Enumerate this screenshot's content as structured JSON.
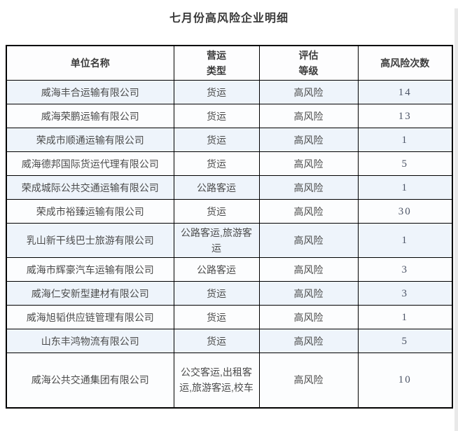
{
  "page": {
    "title": "七月份高风险企业明细"
  },
  "table": {
    "columns": [
      {
        "label": "单位名称"
      },
      {
        "label": "营运\n类型"
      },
      {
        "label": "评估\n等级"
      },
      {
        "label": "高风险次数"
      }
    ],
    "rows": [
      {
        "name": "威海丰合运输有限公司",
        "type": "货运",
        "level": "高风险",
        "count": "14"
      },
      {
        "name": "威海荣鹏运输有限公司",
        "type": "货运",
        "level": "高风险",
        "count": "13"
      },
      {
        "name": "荣成市顺通运输有限公司",
        "type": "货运",
        "level": "高风险",
        "count": "1"
      },
      {
        "name": "威海德邦国际货运代理有限公司",
        "type": "货运",
        "level": "高风险",
        "count": "5"
      },
      {
        "name": "荣成城际公共交通运输有限公司",
        "type": "公路客运",
        "level": "高风险",
        "count": "1"
      },
      {
        "name": "荣成市裕臻运输有限公司",
        "type": "货运",
        "level": "高风险",
        "count": "30"
      },
      {
        "name": "乳山新干线巴士旅游有限公司",
        "type": "公路客运,旅游客运",
        "level": "高风险",
        "count": "1"
      },
      {
        "name": "威海市辉豪汽车运输有限公司",
        "type": "公路客运",
        "level": "高风险",
        "count": "3"
      },
      {
        "name": "威海仁安新型建材有限公司",
        "type": "货运",
        "level": "高风险",
        "count": "3"
      },
      {
        "name": "威海旭韬供应链管理有限公司",
        "type": "货运",
        "level": "高风险",
        "count": "1"
      },
      {
        "name": "山东丰鸿物流有限公司",
        "type": "货运",
        "level": "高风险",
        "count": "5"
      },
      {
        "name": "威海公共交通集团有限公司",
        "type": "公交客运,出租客运,旅游客运,校车",
        "level": "高风险",
        "count": "10"
      }
    ]
  },
  "colors": {
    "row_alt_background": "#eef4fb",
    "row_background": "#fcfdfe",
    "border": "#000000",
    "title_text": "#3a3a3a",
    "cell_text": "#4b4b4b",
    "count_text": "#4c5466",
    "scrollbar_track": "#e9e9e9"
  }
}
